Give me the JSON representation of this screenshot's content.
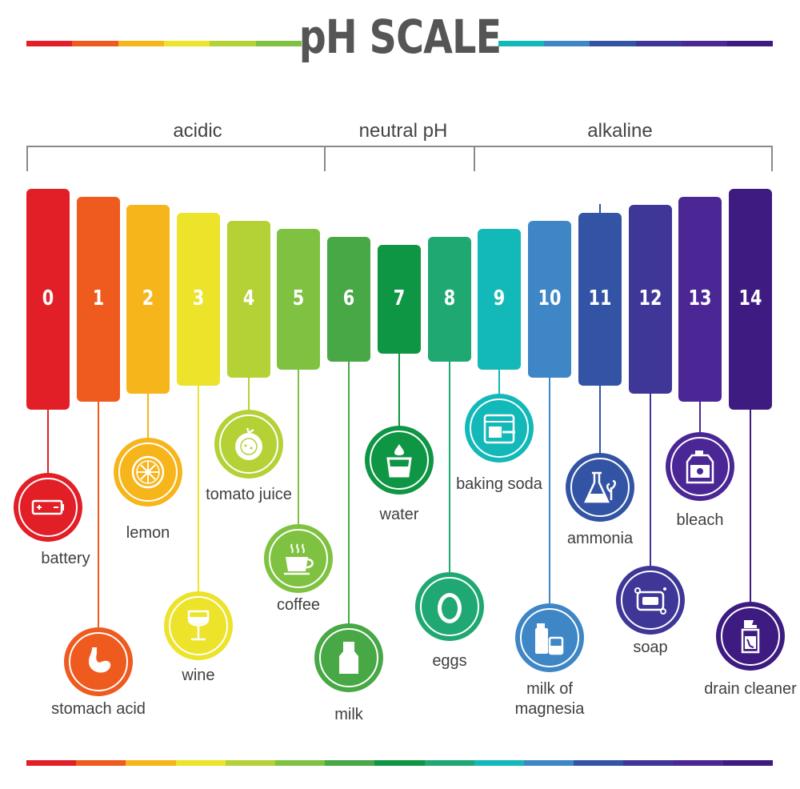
{
  "title": "pH SCALE",
  "categories": [
    "acidic",
    "neutral pH",
    "alkaline"
  ],
  "colors": [
    "#e21f26",
    "#ef5a1e",
    "#f7b51c",
    "#ece32a",
    "#b4d136",
    "#7fc241",
    "#47a845",
    "#0f9644",
    "#1fa872",
    "#13b9b8",
    "#3e86c6",
    "#3354a4",
    "#3f3797",
    "#4b2796",
    "#3e1b80"
  ],
  "scale": [
    {
      "ph": "0",
      "item": "battery",
      "icon": "battery-icon"
    },
    {
      "ph": "1",
      "item": "stomach acid",
      "icon": "stomach-icon"
    },
    {
      "ph": "2",
      "item": "lemon",
      "icon": "lemon-icon"
    },
    {
      "ph": "3",
      "item": "wine",
      "icon": "wine-glass-icon"
    },
    {
      "ph": "4",
      "item": "tomato juice",
      "icon": "tomato-icon"
    },
    {
      "ph": "5",
      "item": "coffee",
      "icon": "coffee-cup-icon"
    },
    {
      "ph": "6",
      "item": "milk",
      "icon": "milk-bottle-icon"
    },
    {
      "ph": "7",
      "item": "water",
      "icon": "water-glass-icon"
    },
    {
      "ph": "8",
      "item": "eggs",
      "icon": "egg-icon"
    },
    {
      "ph": "9",
      "item": "baking soda",
      "icon": "baking-soda-icon"
    },
    {
      "ph": "10",
      "item": "milk of magnesia",
      "icon": "medicine-bottle-icon"
    },
    {
      "ph": "11",
      "item": "ammonia",
      "icon": "flask-icon"
    },
    {
      "ph": "12",
      "item": "soap",
      "icon": "soap-icon"
    },
    {
      "ph": "13",
      "item": "bleach",
      "icon": "bleach-jug-icon"
    },
    {
      "ph": "14",
      "item": "drain cleaner",
      "icon": "drain-cleaner-icon"
    }
  ]
}
